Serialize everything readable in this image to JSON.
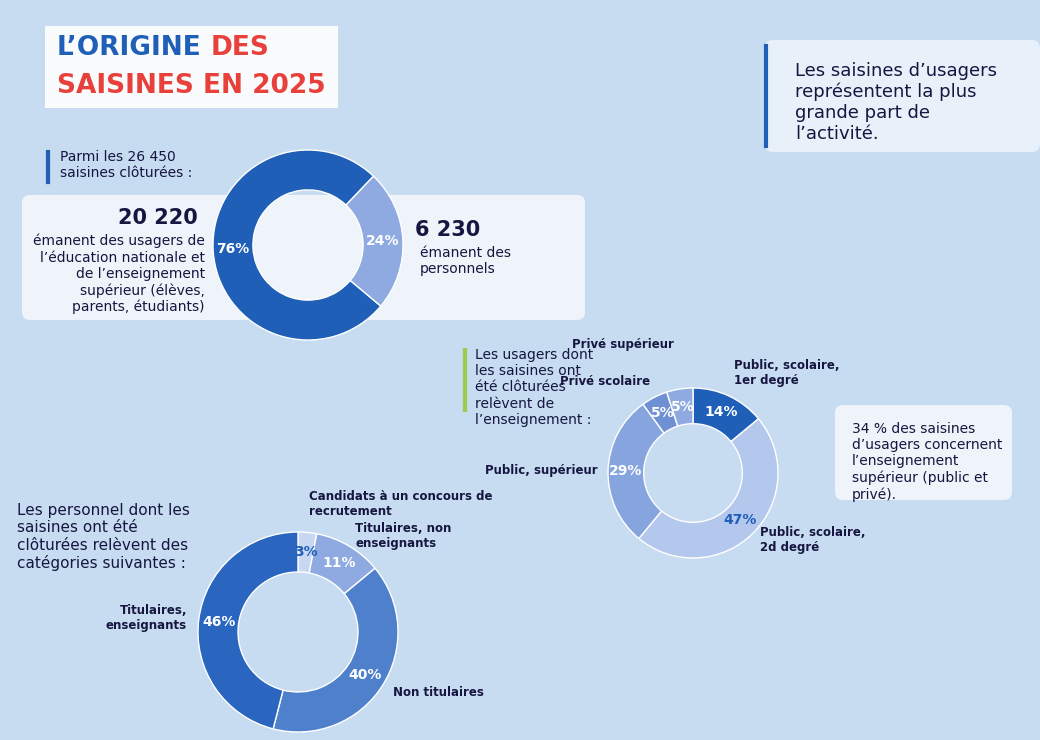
{
  "title": "L’ORIGINE DES SAISINES EN 2025",
  "callout": "Les saisines d’usagers représentent la plus grande part de l’activité.",
  "chart_data": [
    {
      "type": "pie",
      "caption": "Parmi les 26 450 saisines clôturées :",
      "categories": [
        "émanent des usagers de l’éducation nationale et de l’enseignement supérieur (élèves, parents, étudiants)",
        "émanent des personnels"
      ],
      "counts": [
        "20 220",
        "6 230"
      ],
      "values": [
        76,
        24
      ],
      "value_labels": [
        "76%",
        "24%"
      ],
      "colors": [
        "#1f5fb8",
        "#8eaae0"
      ],
      "data_labels": true
    },
    {
      "type": "pie",
      "title": "Les usagers dont les saisines ont été clôturées relèvent de l’enseignement :",
      "categories": [
        "Public, scolaire, 1er degré",
        "Public, scolaire, 2d degré",
        "Public, supérieur",
        "Privé scolaire",
        "Privé supérieur"
      ],
      "values": [
        14,
        47,
        29,
        5,
        5
      ],
      "value_labels": [
        "14%",
        "47%",
        "29%",
        "5%",
        "5%"
      ],
      "colors": [
        "#1f5fb8",
        "#b3c8ec",
        "#86a4de",
        "#6f91d4",
        "#8eaae0"
      ],
      "data_labels": true,
      "annotation": "34 % des saisines d’usagers concernent l’enseignement supérieur (public et privé)."
    },
    {
      "type": "pie",
      "title": "Les personnel dont les saisines ont été clôturées relèvent des catégories suivantes :",
      "categories": [
        "Candidats à un concours de recrutement",
        "Titulaires, non enseignants",
        "Non titulaires",
        "Titulaires, enseignants"
      ],
      "values": [
        3,
        11,
        40,
        46
      ],
      "value_labels": [
        "3%",
        "11%",
        "40%",
        "46%"
      ],
      "colors": [
        "#c9d8f2",
        "#8eaae0",
        "#4f80cc",
        "#2a66bf"
      ],
      "data_labels": true
    }
  ]
}
